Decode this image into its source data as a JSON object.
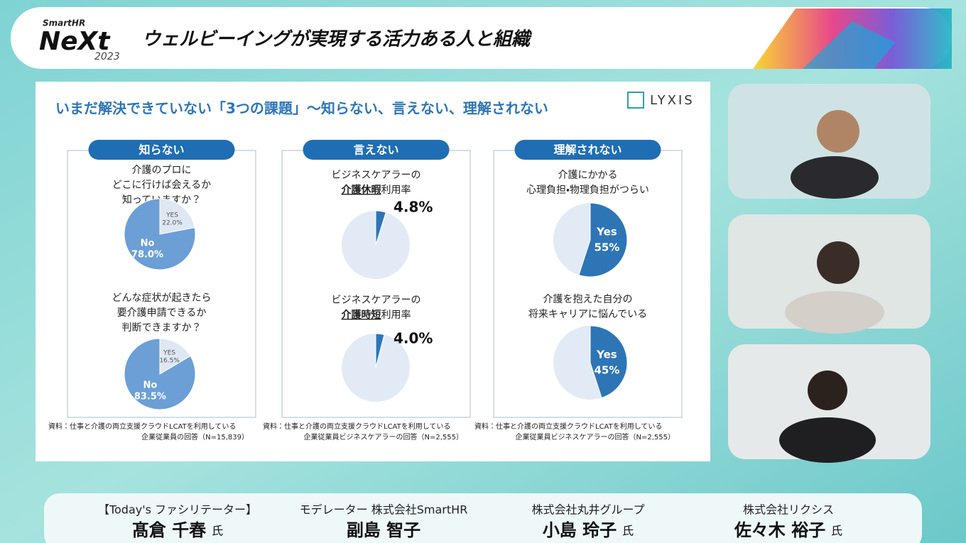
{
  "header": {
    "brand": "SmartHR",
    "logo": "NeXt",
    "year": "2023",
    "title": "ウェルビーイングが実現する活力ある人と組織"
  },
  "slide": {
    "title": "いまだ解決できていない「3つの課題」〜知らない、言えない、理解されない",
    "logo": "LYXIS",
    "panels": [
      {
        "heading": "知らない",
        "charts": [
          {
            "question": [
              "介護のプロに",
              "どこに行けば会えるか",
              "知っていますか？"
            ],
            "slices": [
              {
                "name": "YES",
                "value": 22.0,
                "value_label": "22.0%",
                "color": "#dfe7f3"
              },
              {
                "name": "No",
                "value": 78.0,
                "value_label": "78.0%",
                "color": "#6b9fd6"
              }
            ]
          },
          {
            "question": [
              "どんな症状が起きたら",
              "要介護申請できるか",
              "判断できますか？"
            ],
            "slices": [
              {
                "name": "YES",
                "value": 16.5,
                "value_label": "16.5%",
                "color": "#dfe7f3"
              },
              {
                "name": "No",
                "value": 83.5,
                "value_label": "83.5%",
                "color": "#6b9fd6"
              }
            ]
          }
        ],
        "source": [
          "資料：仕事と介護の両立支援クラウドLCATを利用している",
          "企業従業員の回答（N=15,839）"
        ]
      },
      {
        "heading": "言えない",
        "charts": [
          {
            "question": [
              "ビジネスケアラーの"
            ],
            "question_em": "介護休暇",
            "question_rest": "利用率",
            "slices": [
              {
                "value": 4.8,
                "value_label": "4.8%",
                "color": "#2e75b6"
              }
            ]
          },
          {
            "question": [
              "ビジネスケアラーの"
            ],
            "question_em": "介護時短",
            "question_rest": "利用率",
            "slices": [
              {
                "value": 4.0,
                "value_label": "4.0%",
                "color": "#2e75b6"
              }
            ]
          }
        ],
        "source": [
          "資料：仕事と介護の両立支援クラウドLCATを利用している",
          "企業従業員ビジネスケアラーの回答（N=2,555）"
        ]
      },
      {
        "heading": "理解されない",
        "charts": [
          {
            "question": [
              "介護にかかる",
              "心理負担・物理負担がつらい"
            ],
            "slices": [
              {
                "name": "Yes",
                "value": 55,
                "value_label": "55%",
                "color": "#2e75b6"
              }
            ]
          },
          {
            "question": [
              "介護を抱えた自分の",
              "将来キャリアに悩んでいる"
            ],
            "slices": [
              {
                "name": "Yes",
                "value": 45,
                "value_label": "45%",
                "color": "#2e75b6"
              }
            ]
          }
        ],
        "source": [
          "資料：仕事と介護の両立支援クラウドLCATを利用している",
          "企業従業員ビジネスケアラーの回答（N=2,555）"
        ]
      }
    ]
  },
  "speakers": [
    {
      "role": "【Today's ファシリテーター】",
      "name": "髙倉 千春",
      "honorific": "氏"
    },
    {
      "role": "モデレーター 株式会社SmartHR",
      "name": "副島 智子"
    },
    {
      "role": "株式会社丸井グループ",
      "name": "小島 玲子",
      "honorific": "氏"
    },
    {
      "role": "株式会社リクシス",
      "name": "佐々木 裕子",
      "honorific": "氏"
    }
  ]
}
